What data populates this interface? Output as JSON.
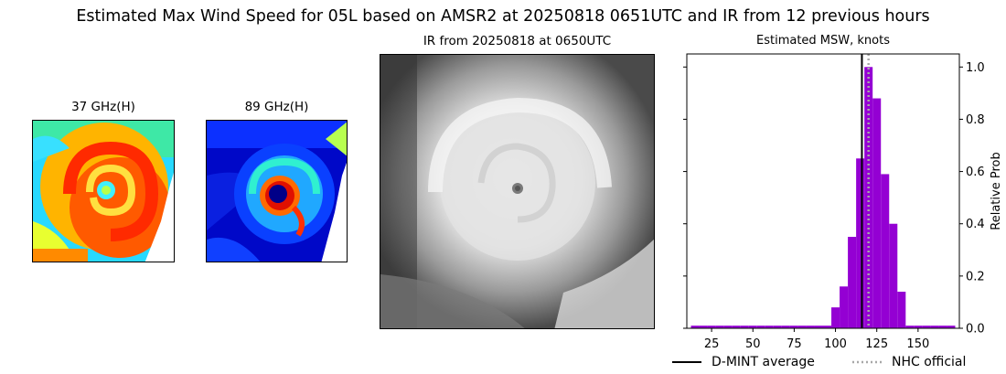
{
  "figure": {
    "title": "Estimated Max Wind Speed for 05L based on AMSR2 at 20250818 0651UTC and IR from 12 previous hours"
  },
  "panels": {
    "p37": {
      "title": "37 GHz(H)"
    },
    "p89": {
      "title": "89 GHz(H)"
    },
    "ir": {
      "title": "IR from 20250818 at 0650UTC"
    }
  },
  "legend": {
    "dmint": "D-MINT average",
    "nhc": "NHC official"
  },
  "colors": {
    "bars": "#9400d3",
    "dmint_line": "#000000",
    "nhc_line": "#a8a8a8"
  },
  "chart_data": {
    "type": "bar",
    "title": "Estimated MSW, knots",
    "xlabel": "",
    "ylabel": "Relative Prob",
    "xlim": [
      10,
      175
    ],
    "ylim": [
      0,
      1.05
    ],
    "x_ticks": [
      25,
      50,
      75,
      100,
      125,
      150
    ],
    "y_ticks": [
      0.0,
      0.2,
      0.4,
      0.6,
      0.8,
      1.0
    ],
    "y_axis_side": "right",
    "bin_width": 5,
    "bin_centers": [
      15,
      20,
      25,
      30,
      35,
      40,
      45,
      50,
      55,
      60,
      65,
      70,
      75,
      80,
      85,
      90,
      95,
      100,
      105,
      110,
      115,
      120,
      125,
      130,
      135,
      140,
      145,
      150,
      155,
      160,
      165,
      170
    ],
    "values": [
      0.01,
      0.01,
      0.01,
      0.01,
      0.01,
      0.01,
      0.01,
      0.01,
      0.01,
      0.01,
      0.01,
      0.01,
      0.01,
      0.01,
      0.01,
      0.01,
      0.01,
      0.08,
      0.16,
      0.35,
      0.65,
      1.0,
      0.88,
      0.59,
      0.4,
      0.14,
      0.01,
      0.01,
      0.01,
      0.01,
      0.01,
      0.01
    ],
    "dmint_average": 116,
    "nhc_official": 120
  }
}
